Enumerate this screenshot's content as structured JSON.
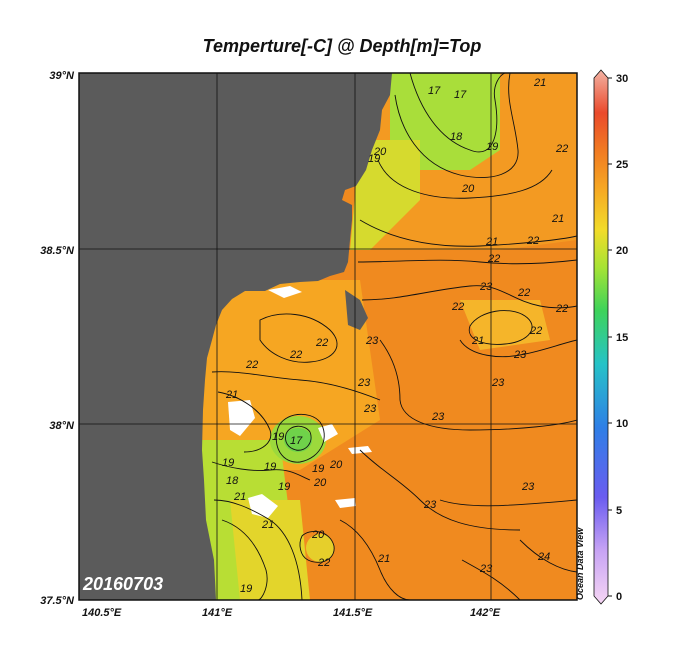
{
  "title": "Temperture[-C] @ Depth[m]=Top",
  "date_label": "20160703",
  "watermark": "Ocean Data View",
  "axes": {
    "x_ticks": [
      "140.5°E",
      "141°E",
      "141.5°E",
      "142°E"
    ],
    "y_ticks": [
      "39°N",
      "38.5°N",
      "38°N",
      "37.5°N"
    ]
  },
  "colorbar": {
    "min": 0,
    "max": 30,
    "ticks": [
      "30",
      "25",
      "20",
      "15",
      "10",
      "5",
      "0"
    ]
  },
  "colors": {
    "land": "#5b5b5b",
    "missing": "#ffffff",
    "warm_orange": "#f28a1e",
    "cool_green": "#a4e23a"
  },
  "contour_labels": [
    "17",
    "17",
    "18",
    "20",
    "19",
    "19",
    "20",
    "21",
    "22",
    "22",
    "21",
    "21",
    "22",
    "23",
    "22",
    "22",
    "22",
    "21",
    "22",
    "23",
    "23",
    "22",
    "22",
    "21",
    "22",
    "23",
    "23",
    "23",
    "23",
    "23",
    "17",
    "19",
    "19",
    "20",
    "19",
    "18",
    "21",
    "19",
    "21",
    "22",
    "20",
    "21",
    "19",
    "20",
    "23",
    "23",
    "24",
    "19"
  ]
}
